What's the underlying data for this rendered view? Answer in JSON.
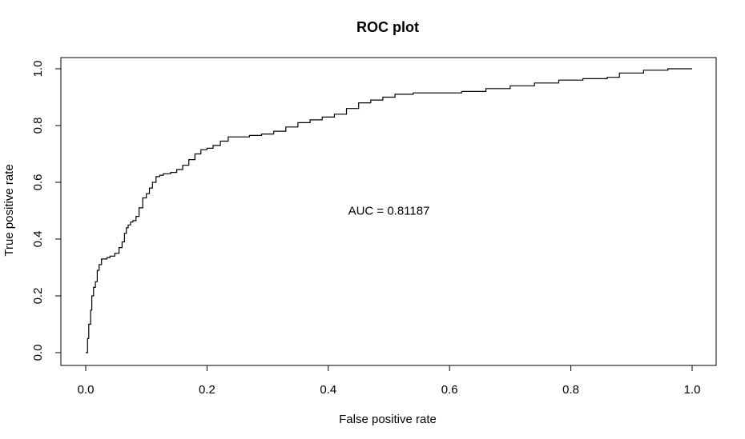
{
  "chart_data": {
    "type": "line",
    "title": "ROC plot",
    "xlabel": "False positive rate",
    "ylabel": "True positive rate",
    "xlim": [
      0,
      1
    ],
    "ylim": [
      0,
      1
    ],
    "grid": false,
    "x_ticks": [
      "0.0",
      "0.2",
      "0.4",
      "0.6",
      "0.8",
      "1.0"
    ],
    "y_ticks": [
      "0.0",
      "0.2",
      "0.4",
      "0.6",
      "0.8",
      "1.0"
    ],
    "annotation": {
      "text": "AUC =  0.81187",
      "x": 0.5,
      "y": 0.5
    },
    "series": [
      {
        "color": "#000000",
        "x": [
          0.0,
          0.003,
          0.005,
          0.008,
          0.01,
          0.013,
          0.016,
          0.019,
          0.022,
          0.026,
          0.03,
          0.035,
          0.04,
          0.048,
          0.055,
          0.06,
          0.064,
          0.067,
          0.07,
          0.074,
          0.078,
          0.083,
          0.088,
          0.094,
          0.1,
          0.105,
          0.11,
          0.116,
          0.122,
          0.128,
          0.133,
          0.14,
          0.15,
          0.16,
          0.17,
          0.18,
          0.19,
          0.2,
          0.21,
          0.222,
          0.235,
          0.25,
          0.27,
          0.29,
          0.31,
          0.33,
          0.35,
          0.37,
          0.39,
          0.41,
          0.43,
          0.45,
          0.47,
          0.49,
          0.51,
          0.54,
          0.58,
          0.62,
          0.66,
          0.7,
          0.74,
          0.78,
          0.82,
          0.86,
          0.88,
          0.92,
          0.96,
          1.0
        ],
        "y": [
          0.0,
          0.05,
          0.1,
          0.15,
          0.2,
          0.23,
          0.25,
          0.29,
          0.31,
          0.33,
          0.33,
          0.335,
          0.34,
          0.35,
          0.37,
          0.39,
          0.42,
          0.44,
          0.45,
          0.46,
          0.465,
          0.48,
          0.51,
          0.545,
          0.56,
          0.58,
          0.6,
          0.62,
          0.625,
          0.63,
          0.63,
          0.635,
          0.645,
          0.66,
          0.68,
          0.7,
          0.715,
          0.72,
          0.73,
          0.745,
          0.76,
          0.76,
          0.765,
          0.77,
          0.78,
          0.795,
          0.81,
          0.82,
          0.83,
          0.84,
          0.86,
          0.88,
          0.89,
          0.9,
          0.91,
          0.915,
          0.915,
          0.92,
          0.93,
          0.94,
          0.95,
          0.96,
          0.965,
          0.97,
          0.985,
          0.995,
          1.0,
          1.0
        ]
      }
    ]
  }
}
